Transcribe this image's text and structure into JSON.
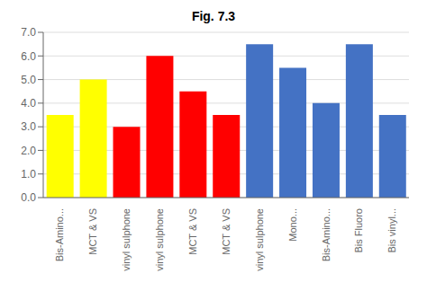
{
  "chart_data": {
    "type": "bar",
    "title": "Fig. 7.3",
    "categories": [
      "Bis-Amino...",
      "MCT & VS",
      "vinyl sulphone",
      "vinyl sulphone",
      "MCT & VS",
      "MCT & VS",
      "vinyl sulphone",
      "Mono...",
      "Bis-Amino...",
      "Bis Fluoro",
      "Bis vinyl..."
    ],
    "values": [
      3.5,
      5.0,
      3.0,
      6.0,
      4.5,
      3.5,
      6.5,
      5.5,
      4.0,
      6.5,
      3.5
    ],
    "colors": [
      "#FFFF00",
      "#FFFF00",
      "#FF0000",
      "#FF0000",
      "#FF0000",
      "#FF0000",
      "#4472C4",
      "#4472C4",
      "#4472C4",
      "#4472C4",
      "#4472C4"
    ],
    "ylim": [
      0.0,
      7.0
    ],
    "yticks": [
      {
        "value": 0,
        "label": "0.0"
      },
      {
        "value": 1,
        "label": "1.0"
      },
      {
        "value": 2,
        "label": "2.0"
      },
      {
        "value": 3,
        "label": "3.0"
      },
      {
        "value": 4,
        "label": "4.0"
      },
      {
        "value": 5,
        "label": "5.0"
      },
      {
        "value": 6,
        "label": "6.0"
      },
      {
        "value": 7,
        "label": "7.0"
      }
    ],
    "grid": true
  }
}
